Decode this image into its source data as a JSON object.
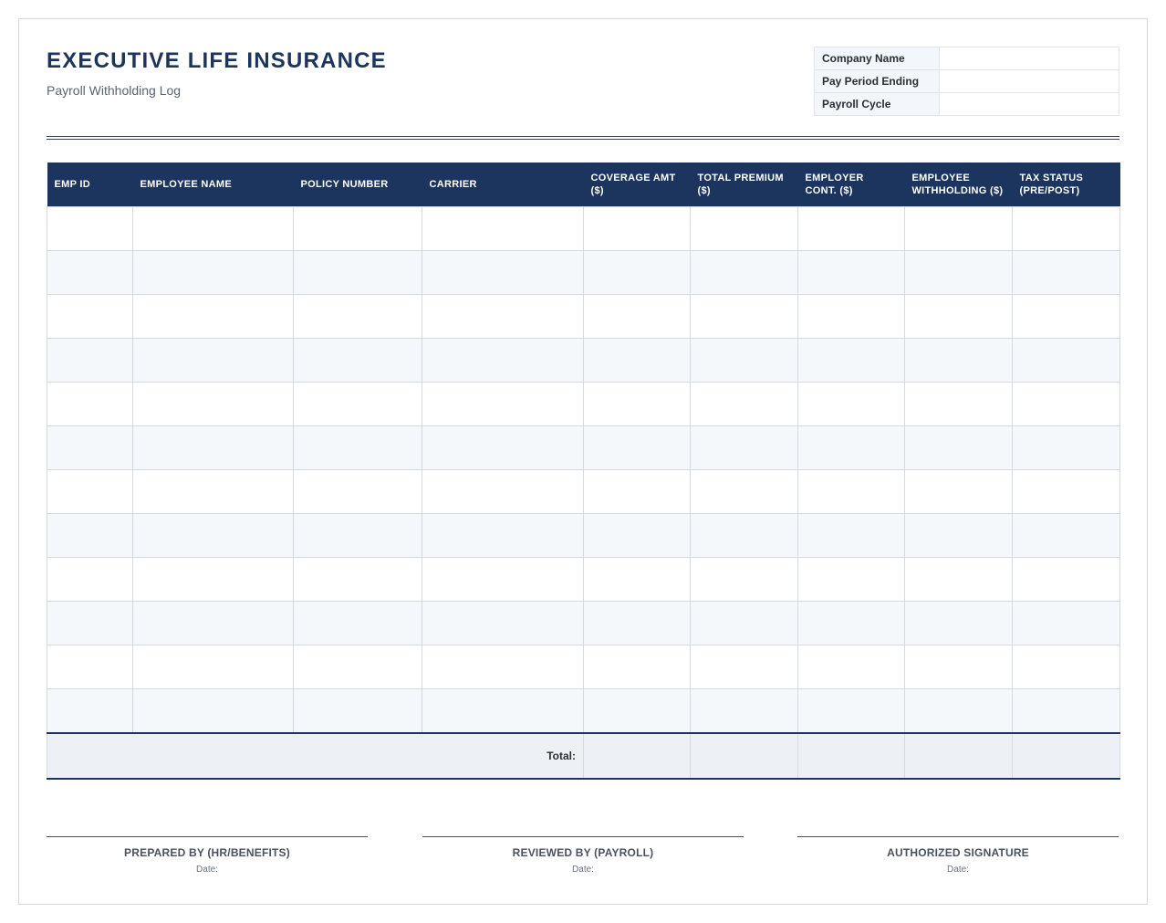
{
  "header": {
    "title": "EXECUTIVE LIFE INSURANCE",
    "subtitle": "Payroll Withholding Log"
  },
  "info": {
    "rows": [
      "Company Name",
      "Pay Period Ending",
      "Payroll Cycle"
    ]
  },
  "table": {
    "columns": [
      "EMP ID",
      "EMPLOYEE NAME",
      "POLICY NUMBER",
      "CARRIER",
      "COVERAGE AMT ($)",
      "TOTAL PREMIUM ($)",
      "EMPLOYER CONT. ($)",
      "EMPLOYEE WITHHOLDING ($)",
      "TAX STATUS (PRE/POST)"
    ],
    "total_label": "Total:"
  },
  "signatures": [
    {
      "label": "PREPARED BY (HR/BENEFITS)",
      "date": "Date:"
    },
    {
      "label": "REVIEWED BY (PAYROLL)",
      "date": "Date:"
    },
    {
      "label": "AUTHORIZED SIGNATURE",
      "date": "Date:"
    }
  ]
}
